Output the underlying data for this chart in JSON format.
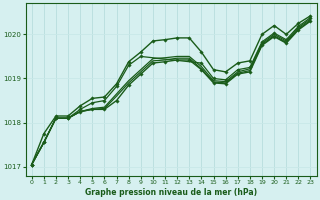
{
  "title": "Graphe pression niveau de la mer (hPa)",
  "bg_color": "#d6f0f0",
  "grid_color_v": "#b8dede",
  "grid_color_h": "#c8e8e8",
  "line_color": "#1a5c1a",
  "xlim": [
    -0.5,
    23.5
  ],
  "ylim": [
    1016.8,
    1020.7
  ],
  "yticks": [
    1017,
    1018,
    1019,
    1020
  ],
  "xticks": [
    0,
    1,
    2,
    3,
    4,
    5,
    6,
    7,
    8,
    9,
    10,
    11,
    12,
    13,
    14,
    15,
    16,
    17,
    18,
    19,
    20,
    21,
    22,
    23
  ],
  "series": [
    {
      "x": [
        0,
        1,
        2,
        3,
        4,
        5,
        6,
        7,
        8,
        9,
        10,
        11,
        12,
        13,
        14,
        15,
        16,
        17,
        18,
        19,
        20,
        21,
        22,
        23
      ],
      "y": [
        1017.05,
        1017.55,
        1018.1,
        1018.1,
        1018.25,
        1018.3,
        1018.3,
        1018.5,
        1018.85,
        1019.1,
        1019.35,
        1019.38,
        1019.42,
        1019.42,
        1019.2,
        1018.9,
        1018.88,
        1019.1,
        1019.15,
        1019.75,
        1019.95,
        1019.8,
        1020.1,
        1020.3
      ],
      "marker": true,
      "lw": 1.0
    },
    {
      "x": [
        0,
        1,
        2,
        3,
        4,
        5,
        6,
        7,
        8,
        9,
        10,
        11,
        12,
        13,
        14,
        15,
        16,
        17,
        18,
        19,
        20,
        21,
        22,
        23
      ],
      "y": [
        1017.05,
        1017.55,
        1018.1,
        1018.1,
        1018.25,
        1018.3,
        1018.32,
        1018.6,
        1018.9,
        1019.15,
        1019.4,
        1019.42,
        1019.46,
        1019.46,
        1019.22,
        1018.92,
        1018.9,
        1019.12,
        1019.18,
        1019.77,
        1019.97,
        1019.82,
        1020.12,
        1020.32
      ],
      "marker": false,
      "lw": 0.9
    },
    {
      "x": [
        0,
        1,
        2,
        3,
        4,
        5,
        6,
        7,
        8,
        9,
        10,
        11,
        12,
        13,
        14,
        15,
        16,
        17,
        18,
        19,
        20,
        21,
        22,
        23
      ],
      "y": [
        1017.05,
        1017.55,
        1018.1,
        1018.1,
        1018.25,
        1018.32,
        1018.35,
        1018.65,
        1018.95,
        1019.2,
        1019.45,
        1019.47,
        1019.5,
        1019.5,
        1019.27,
        1018.95,
        1018.93,
        1019.15,
        1019.22,
        1019.8,
        1020.0,
        1019.85,
        1020.15,
        1020.35
      ],
      "marker": false,
      "lw": 0.9
    },
    {
      "x": [
        0,
        1,
        2,
        3,
        4,
        5,
        6,
        7,
        8,
        9,
        14,
        15,
        16,
        17,
        18,
        19,
        20,
        21,
        22,
        23
      ],
      "y": [
        1017.05,
        1017.55,
        1018.1,
        1018.1,
        1018.3,
        1018.45,
        1018.5,
        1018.82,
        1019.3,
        1019.5,
        1019.35,
        1019.0,
        1018.97,
        1019.2,
        1019.25,
        1019.83,
        1020.03,
        1019.88,
        1020.18,
        1020.38
      ],
      "marker": true,
      "lw": 0.9
    },
    {
      "x": [
        0,
        1,
        2,
        3,
        4,
        5,
        6,
        7,
        8,
        9,
        10,
        11,
        12,
        13,
        14,
        15,
        16,
        17,
        18,
        19,
        20,
        21,
        22,
        23
      ],
      "y": [
        1017.05,
        1017.75,
        1018.15,
        1018.15,
        1018.38,
        1018.55,
        1018.58,
        1018.88,
        1019.38,
        1019.6,
        1019.85,
        1019.88,
        1019.92,
        1019.92,
        1019.6,
        1019.2,
        1019.15,
        1019.35,
        1019.4,
        1020.0,
        1020.2,
        1020.0,
        1020.25,
        1020.42
      ],
      "marker": true,
      "lw": 1.0
    }
  ],
  "figsize": [
    3.2,
    2.0
  ],
  "dpi": 100
}
